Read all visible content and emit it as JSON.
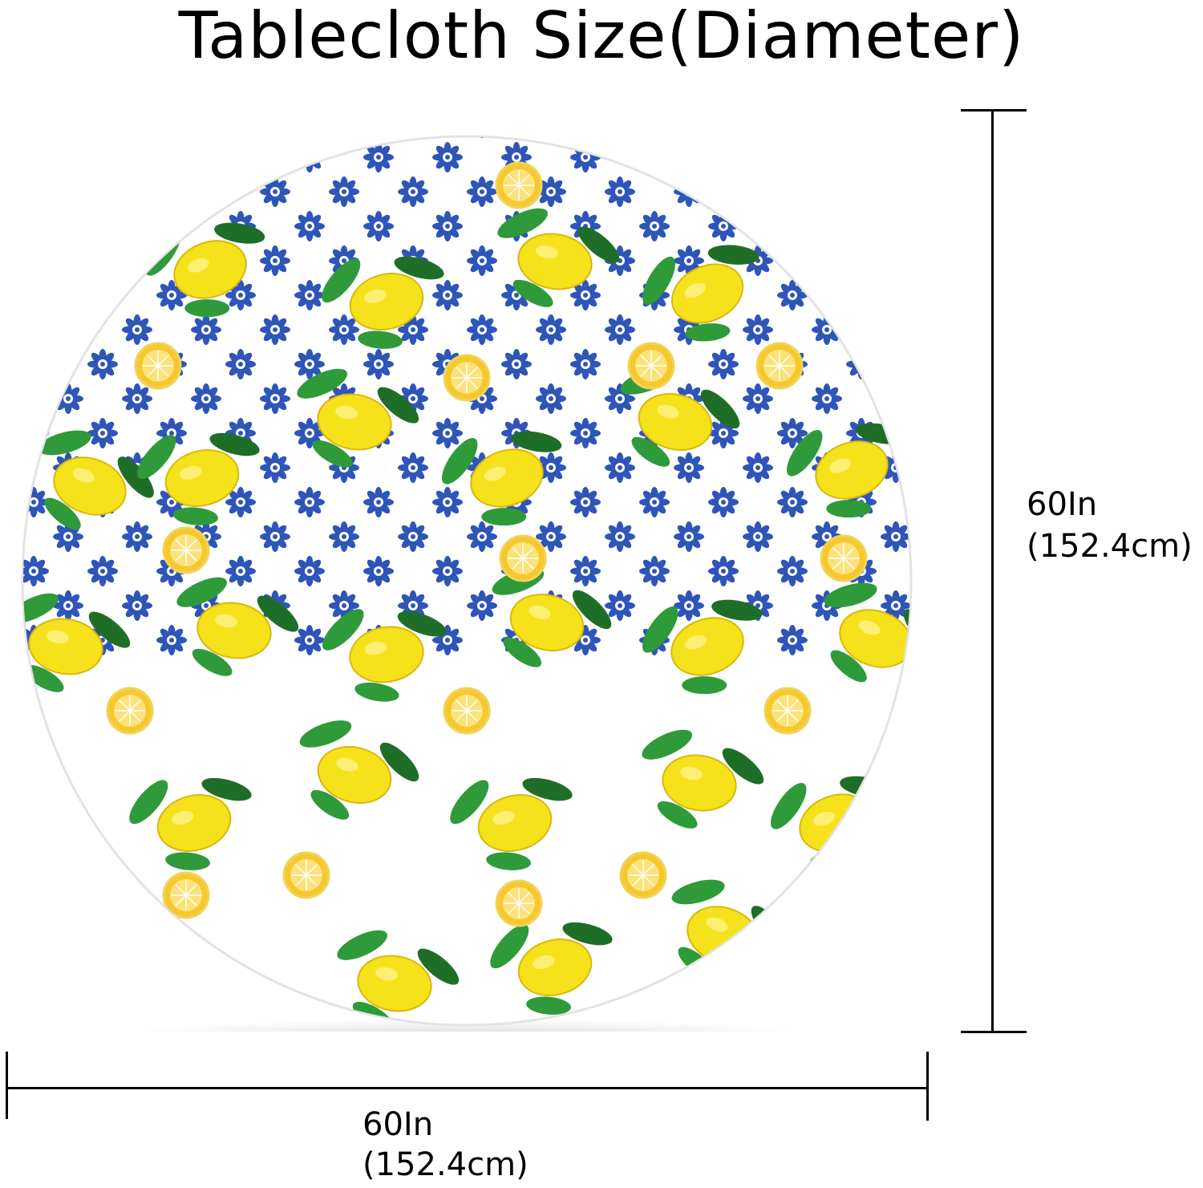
{
  "title": "Tablecloth Size(Diameter)",
  "height_dimension": {
    "inches": "60In",
    "centimeters": "(152.4cm)"
  },
  "width_dimension": {
    "inches": "60In",
    "centimeters": "(152.4cm)"
  },
  "colors": {
    "lemon": "#f5e21a",
    "lemon_shadow": "#d9b80f",
    "lemon_slice": "#f7c82c",
    "leaf": "#2f9a3a",
    "leaf_dark": "#1f6e28",
    "tile_blue": "#2e55b8",
    "cloth_background": "#ffffff",
    "cloth_edge": "#e3e3e3"
  }
}
